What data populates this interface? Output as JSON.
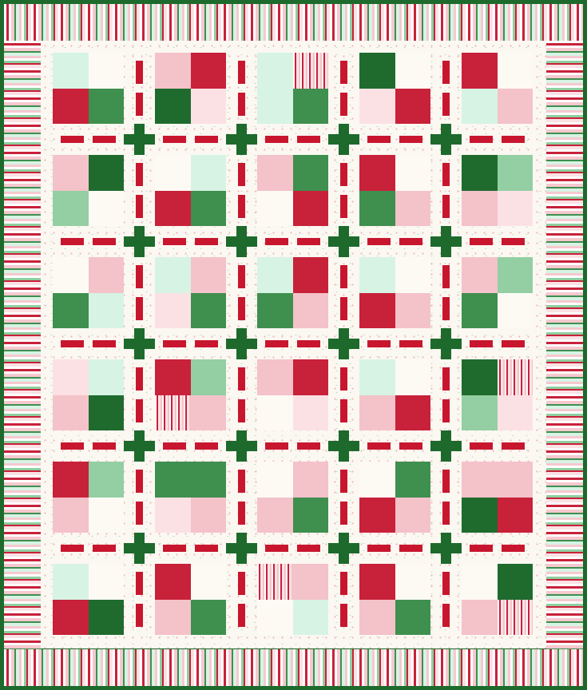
{
  "quilt": {
    "colors": {
      "binding": "#1d6a2c",
      "background": "#fbf8f1",
      "sashing_dash": "#c8162f",
      "cornerstone": "#1d6a2c",
      "red": "#c8213a",
      "green": "#3f8f4f",
      "darkgreen": "#1f6b2e",
      "mint": "#d7f3e4",
      "palegreen": "#93cfa2",
      "pink": "#f4c2c9",
      "lightpink": "#fbe1e4",
      "white": "#fdfaf4",
      "stripe": "stripe"
    },
    "blocks": [
      [
        [
          "mint",
          "white",
          "red",
          "green"
        ],
        [
          "pink",
          "red",
          "darkgreen",
          "lightpink"
        ],
        [
          "mint",
          "stripe",
          "mint",
          "green"
        ],
        [
          "darkgreen",
          "white",
          "lightpink",
          "red"
        ],
        [
          "red",
          "white",
          "mint",
          "pink"
        ]
      ],
      [
        [
          "pink",
          "darkgreen",
          "palegreen",
          "white"
        ],
        [
          "white",
          "mint",
          "red",
          "green"
        ],
        [
          "pink",
          "green",
          "white",
          "red"
        ],
        [
          "red",
          "white",
          "green",
          "pink"
        ],
        [
          "darkgreen",
          "palegreen",
          "pink",
          "lightpink"
        ]
      ],
      [
        [
          "white",
          "pink",
          "green",
          "mint"
        ],
        [
          "mint",
          "pink",
          "lightpink",
          "green"
        ],
        [
          "mint",
          "red",
          "green",
          "pink"
        ],
        [
          "mint",
          "white",
          "red",
          "pink"
        ],
        [
          "pink",
          "palegreen",
          "green",
          "white"
        ]
      ],
      [
        [
          "lightpink",
          "mint",
          "pink",
          "darkgreen"
        ],
        [
          "red",
          "palegreen",
          "stripe",
          "pink"
        ],
        [
          "pink",
          "red",
          "white",
          "lightpink"
        ],
        [
          "mint",
          "white",
          "pink",
          "red"
        ],
        [
          "darkgreen",
          "stripe",
          "palegreen",
          "lightpink"
        ]
      ],
      [
        [
          "red",
          "palegreen",
          "pink",
          "white"
        ],
        [
          "green",
          "green",
          "lightpink",
          "pink"
        ],
        [
          "white",
          "pink",
          "pink",
          "green"
        ],
        [
          "white",
          "green",
          "red",
          "pink"
        ],
        [
          "pink",
          "pink",
          "darkgreen",
          "red"
        ]
      ],
      [
        [
          "mint",
          "white",
          "red",
          "darkgreen"
        ],
        [
          "red",
          "white",
          "pink",
          "green"
        ],
        [
          "stripe",
          "pink",
          "white",
          "mint"
        ],
        [
          "red",
          "white",
          "pink",
          "green"
        ],
        [
          "white",
          "darkgreen",
          "pink",
          "stripe"
        ]
      ]
    ]
  }
}
